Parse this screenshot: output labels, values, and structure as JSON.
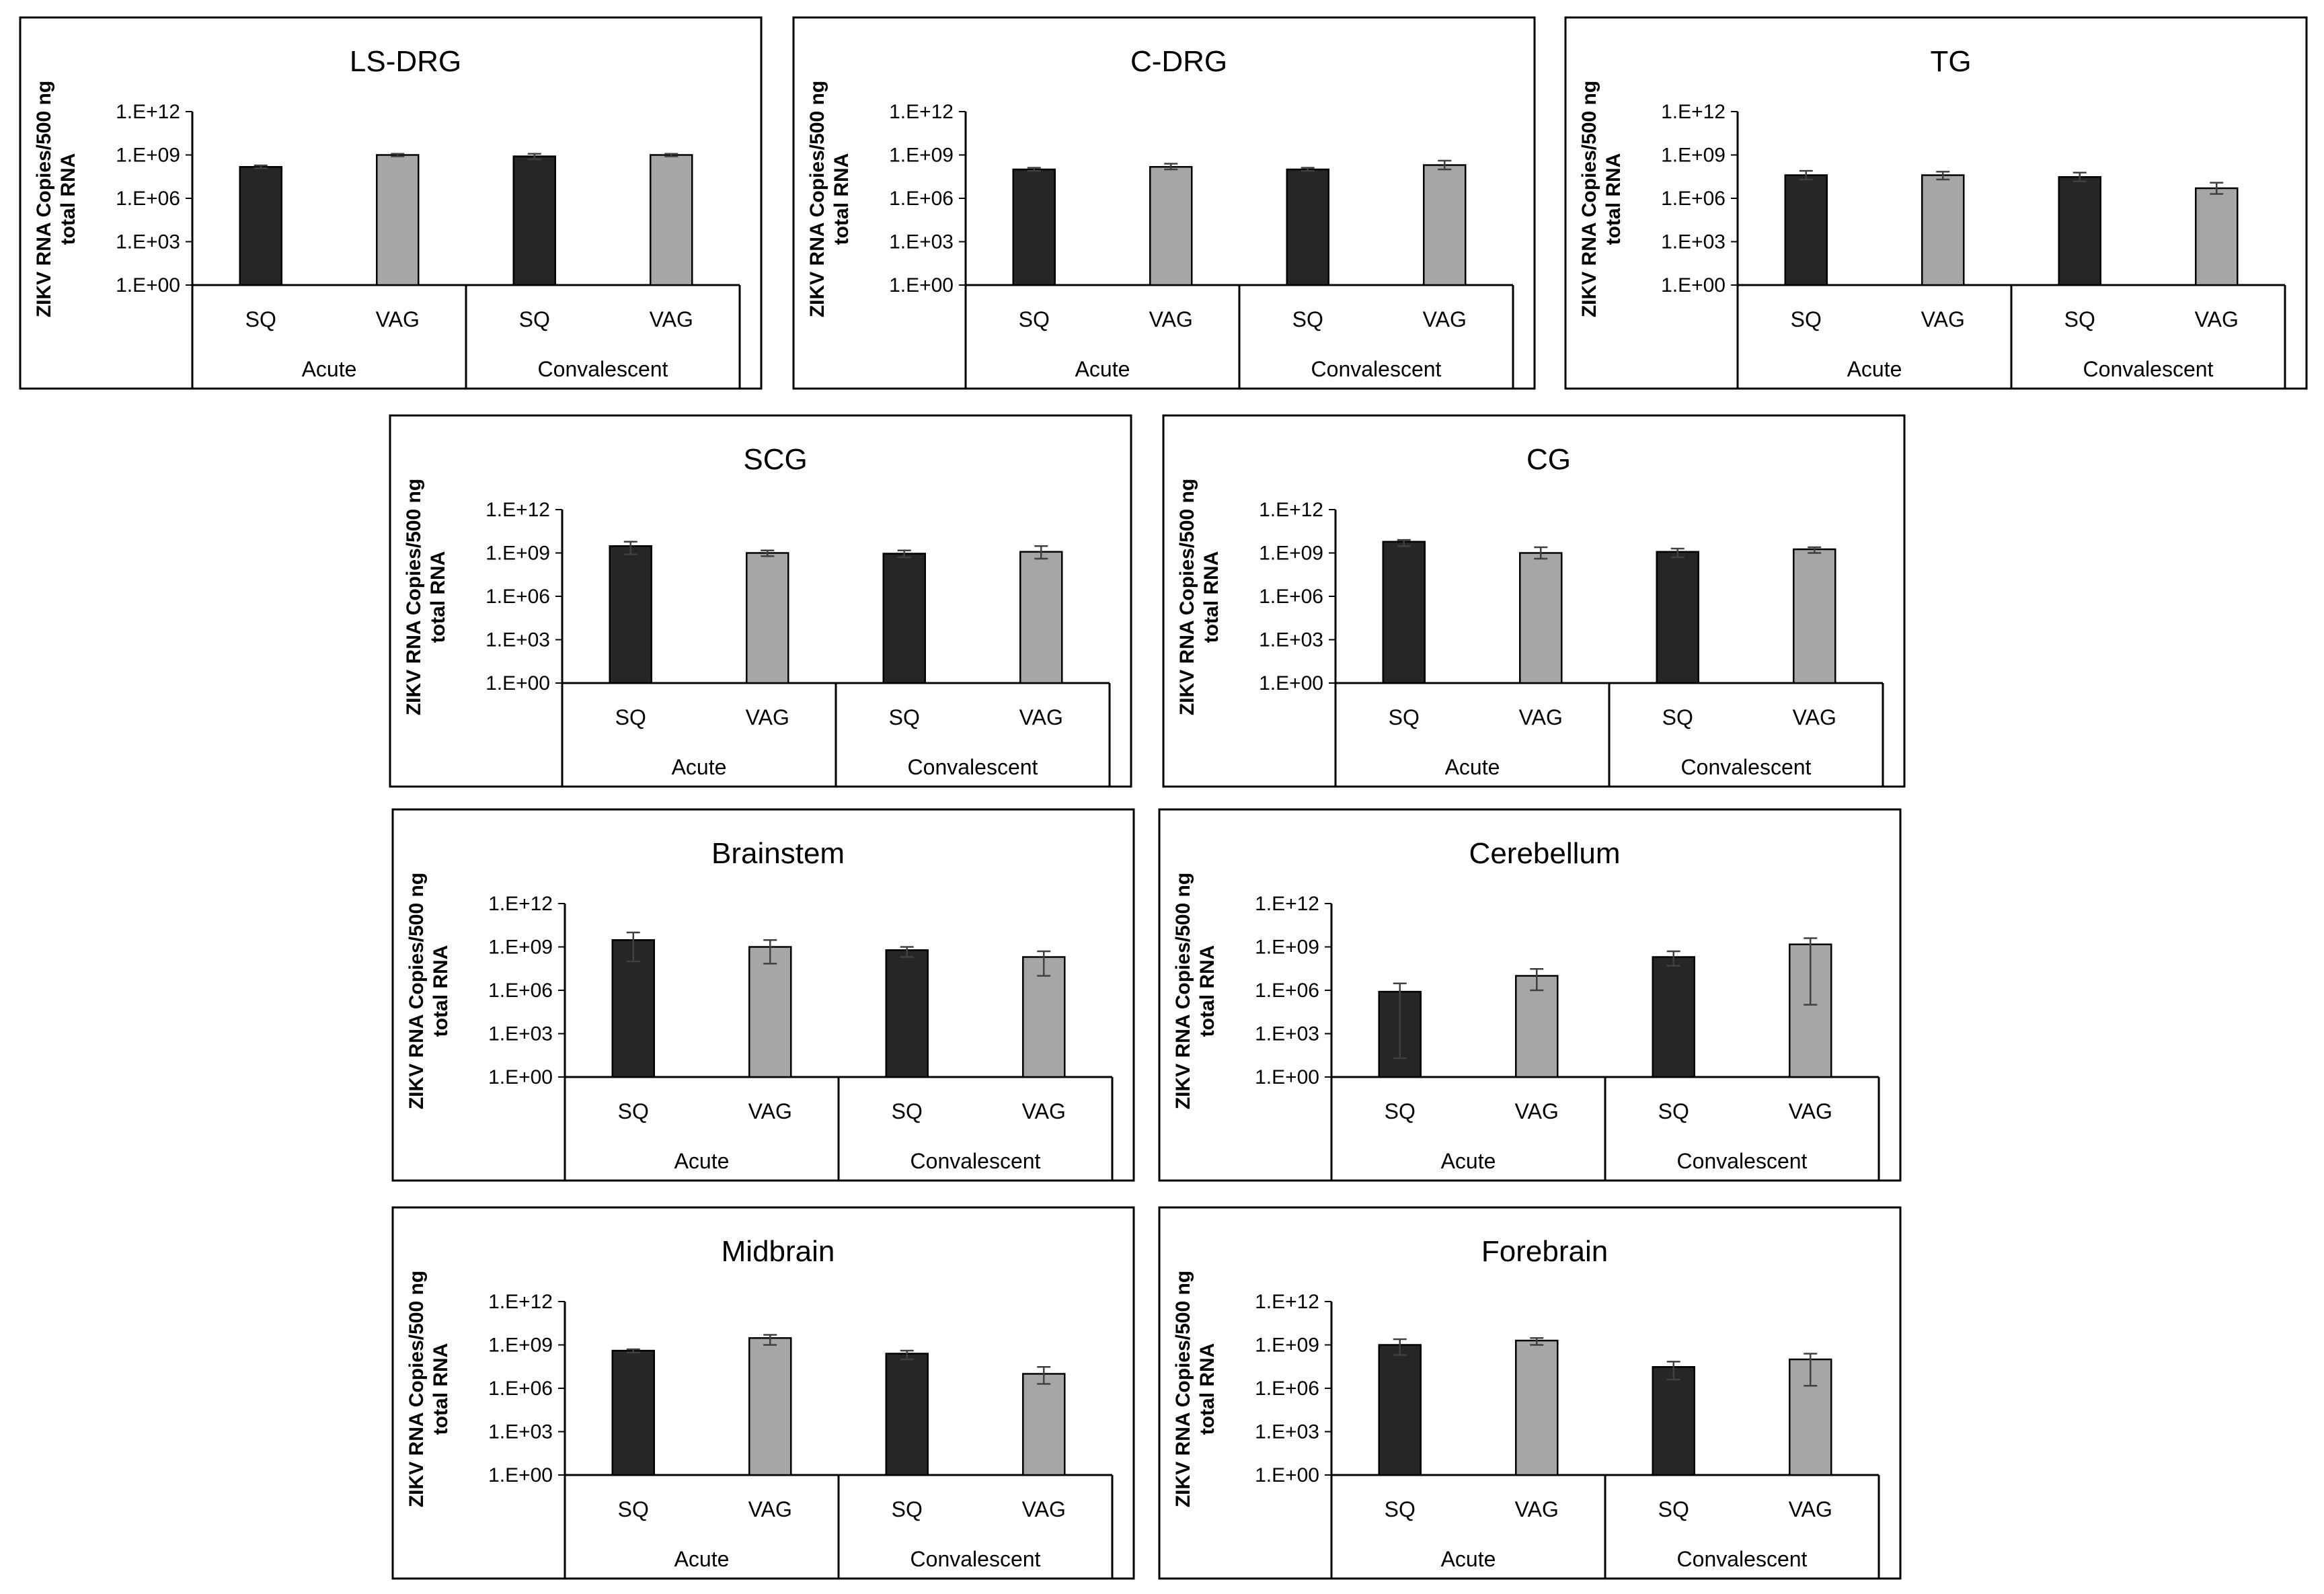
{
  "colors": {
    "sq": "#262626",
    "vag": "#a6a6a6",
    "frame": "#000000"
  },
  "chart_data": [
    {
      "type": "bar",
      "title": "LS-DRG",
      "ylabel": "ZIKV RNA Copies/500 ng total RNA",
      "ylabel_lines": [
        "ZIKV RNA Copies/500 ng",
        "total RNA"
      ],
      "yscale": "log",
      "ylim": [
        1,
        1000000000000.0
      ],
      "yticks": [
        "1.E+00",
        "1.E+03",
        "1.E+06",
        "1.E+09",
        "1.E+12"
      ],
      "groups": [
        "Acute",
        "Convalescent"
      ],
      "categories": [
        "SQ",
        "VAG",
        "SQ",
        "VAG"
      ],
      "values": [
        150000000.0,
        1000000000.0,
        800000000.0,
        1000000000.0
      ],
      "errors": [
        [
          120000000.0,
          190000000.0
        ],
        [
          800000000.0,
          1200000000.0
        ],
        [
          500000000.0,
          1200000000.0
        ],
        [
          800000000.0,
          1200000000.0
        ]
      ]
    },
    {
      "type": "bar",
      "title": "C-DRG",
      "ylabel": "ZIKV RNA Copies/500 ng total RNA",
      "ylabel_lines": [
        "ZIKV RNA Copies/500 ng",
        "total RNA"
      ],
      "yscale": "log",
      "ylim": [
        1,
        1000000000000.0
      ],
      "yticks": [
        "1.E+00",
        "1.E+03",
        "1.E+06",
        "1.E+09",
        "1.E+12"
      ],
      "groups": [
        "Acute",
        "Convalescent"
      ],
      "categories": [
        "SQ",
        "VAG",
        "SQ",
        "VAG"
      ],
      "values": [
        100000000.0,
        150000000.0,
        100000000.0,
        200000000.0
      ],
      "errors": [
        [
          80000000.0,
          130000000.0
        ],
        [
          100000000.0,
          250000000.0
        ],
        [
          80000000.0,
          130000000.0
        ],
        [
          100000000.0,
          400000000.0
        ]
      ]
    },
    {
      "type": "bar",
      "title": "TG",
      "ylabel": "ZIKV RNA Copies/500 ng total RNA",
      "ylabel_lines": [
        "ZIKV RNA Copies/500 ng",
        "total RNA"
      ],
      "yscale": "log",
      "ylim": [
        1,
        1000000000000.0
      ],
      "yticks": [
        "1.E+00",
        "1.E+03",
        "1.E+06",
        "1.E+09",
        "1.E+12"
      ],
      "groups": [
        "Acute",
        "Convalescent"
      ],
      "categories": [
        "SQ",
        "VAG",
        "SQ",
        "VAG"
      ],
      "values": [
        40000000.0,
        40000000.0,
        30000000.0,
        5000000.0
      ],
      "errors": [
        [
          20000000.0,
          80000000.0
        ],
        [
          20000000.0,
          70000000.0
        ],
        [
          15000000.0,
          60000000.0
        ],
        [
          2000000.0,
          12000000.0
        ]
      ]
    },
    {
      "type": "bar",
      "title": "SCG",
      "ylabel": "ZIKV RNA Copies/500 ng total RNA",
      "ylabel_lines": [
        "ZIKV RNA Copies/500 ng",
        "total RNA"
      ],
      "yscale": "log",
      "ylim": [
        1,
        1000000000000.0
      ],
      "yticks": [
        "1.E+00",
        "1.E+03",
        "1.E+06",
        "1.E+09",
        "1.E+12"
      ],
      "groups": [
        "Acute",
        "Convalescent"
      ],
      "categories": [
        "SQ",
        "VAG",
        "SQ",
        "VAG"
      ],
      "values": [
        3000000000.0,
        1000000000.0,
        900000000.0,
        1200000000.0
      ],
      "errors": [
        [
          800000000.0,
          6000000000.0
        ],
        [
          600000000.0,
          1500000000.0
        ],
        [
          500000000.0,
          1500000000.0
        ],
        [
          400000000.0,
          3000000000.0
        ]
      ]
    },
    {
      "type": "bar",
      "title": "CG",
      "ylabel": "ZIKV RNA Copies/500 ng total RNA",
      "ylabel_lines": [
        "ZIKV RNA Copies/500 ng",
        "total RNA"
      ],
      "yscale": "log",
      "ylim": [
        1,
        1000000000000.0
      ],
      "yticks": [
        "1.E+00",
        "1.E+03",
        "1.E+06",
        "1.E+09",
        "1.E+12"
      ],
      "groups": [
        "Acute",
        "Convalescent"
      ],
      "categories": [
        "SQ",
        "VAG",
        "SQ",
        "VAG"
      ],
      "values": [
        6000000000.0,
        1000000000.0,
        1200000000.0,
        1800000000.0
      ],
      "errors": [
        [
          3000000000.0,
          8000000000.0
        ],
        [
          400000000.0,
          2500000000.0
        ],
        [
          500000000.0,
          2000000000.0
        ],
        [
          1000000000.0,
          2500000000.0
        ]
      ]
    },
    {
      "type": "bar",
      "title": "Brainstem",
      "ylabel": "ZIKV RNA Copies/500 ng total RNA",
      "ylabel_lines": [
        "ZIKV RNA Copies/500 ng",
        "total RNA"
      ],
      "yscale": "log",
      "ylim": [
        1,
        1000000000000.0
      ],
      "yticks": [
        "1.E+00",
        "1.E+03",
        "1.E+06",
        "1.E+09",
        "1.E+12"
      ],
      "groups": [
        "Acute",
        "Convalescent"
      ],
      "categories": [
        "SQ",
        "VAG",
        "SQ",
        "VAG"
      ],
      "values": [
        3000000000.0,
        1000000000.0,
        600000000.0,
        200000000.0
      ],
      "errors": [
        [
          100000000.0,
          10000000000.0
        ],
        [
          70000000.0,
          3000000000.0
        ],
        [
          200000000.0,
          1000000000.0
        ],
        [
          10000000.0,
          500000000.0
        ]
      ]
    },
    {
      "type": "bar",
      "title": "Cerebellum",
      "ylabel": "ZIKV RNA Copies/500 ng total RNA",
      "ylabel_lines": [
        "ZIKV RNA Copies/500 ng",
        "total RNA"
      ],
      "yscale": "log",
      "ylim": [
        1,
        1000000000000.0
      ],
      "yticks": [
        "1.E+00",
        "1.E+03",
        "1.E+06",
        "1.E+09",
        "1.E+12"
      ],
      "groups": [
        "Acute",
        "Convalescent"
      ],
      "categories": [
        "SQ",
        "VAG",
        "SQ",
        "VAG"
      ],
      "values": [
        800000.0,
        10000000.0,
        200000000.0,
        1500000000.0
      ],
      "errors": [
        [
          20,
          3000000.0
        ],
        [
          1000000.0,
          30000000.0
        ],
        [
          50000000.0,
          500000000.0
        ],
        [
          100000.0,
          4000000000.0
        ]
      ]
    },
    {
      "type": "bar",
      "title": "Midbrain",
      "ylabel": "ZIKV RNA Copies/500 ng total RNA",
      "ylabel_lines": [
        "ZIKV RNA Copies/500 ng",
        "total RNA"
      ],
      "yscale": "log",
      "ylim": [
        1,
        1000000000000.0
      ],
      "yticks": [
        "1.E+00",
        "1.E+03",
        "1.E+06",
        "1.E+09",
        "1.E+12"
      ],
      "groups": [
        "Acute",
        "Convalescent"
      ],
      "categories": [
        "SQ",
        "VAG",
        "SQ",
        "VAG"
      ],
      "values": [
        400000000.0,
        3000000000.0,
        250000000.0,
        10000000.0
      ],
      "errors": [
        [
          300000000.0,
          500000000.0
        ],
        [
          1000000000.0,
          5000000000.0
        ],
        [
          100000000.0,
          400000000.0
        ],
        [
          2000000.0,
          30000000.0
        ]
      ]
    },
    {
      "type": "bar",
      "title": "Forebrain",
      "ylabel": "ZIKV RNA Copies/500 ng total RNA",
      "ylabel_lines": [
        "ZIKV RNA Copies/500 ng",
        "total RNA"
      ],
      "yscale": "log",
      "ylim": [
        1,
        1000000000000.0
      ],
      "yticks": [
        "1.E+00",
        "1.E+03",
        "1.E+06",
        "1.E+09",
        "1.E+12"
      ],
      "groups": [
        "Acute",
        "Convalescent"
      ],
      "categories": [
        "SQ",
        "VAG",
        "SQ",
        "VAG"
      ],
      "values": [
        1000000000.0,
        2000000000.0,
        30000000.0,
        100000000.0
      ],
      "errors": [
        [
          200000000.0,
          2500000000.0
        ],
        [
          1000000000.0,
          3000000000.0
        ],
        [
          4000000.0,
          70000000.0
        ],
        [
          1500000.0,
          250000000.0
        ]
      ]
    }
  ]
}
